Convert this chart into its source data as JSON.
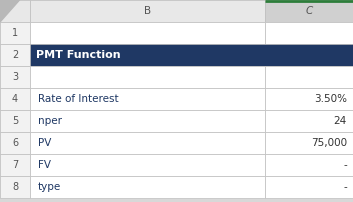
{
  "title": "PMT Function",
  "title_bg": "#1F3864",
  "title_color": "#FFFFFF",
  "rows": [
    {
      "num": "1",
      "col_b": "",
      "col_c": ""
    },
    {
      "num": "2",
      "col_b": "PMT Function",
      "col_c": "",
      "is_title": true
    },
    {
      "num": "3",
      "col_b": "",
      "col_c": ""
    },
    {
      "num": "4",
      "col_b": "Rate of Interest",
      "col_c": "3.50%"
    },
    {
      "num": "5",
      "col_b": "nper",
      "col_c": "24"
    },
    {
      "num": "6",
      "col_b": "PV",
      "col_c": "75,000"
    },
    {
      "num": "7",
      "col_b": "FV",
      "col_c": "-"
    },
    {
      "num": "8",
      "col_b": "type",
      "col_c": "-"
    }
  ],
  "bg_color": "#FFFFFF",
  "outer_bg": "#D8D8D8",
  "grid_color": "#BEBEBE",
  "header_bg": "#E8E8E8",
  "header_text_color": "#555555",
  "row_num_bg": "#F2F2F2",
  "row_num_text": "#555555",
  "body_text_color": "#1F3864",
  "value_text_color": "#333333",
  "col_c_selected_top": "#2D7D3A",
  "col_c_header_bg": "#D0D0D0",
  "corner_triangle_color": "#B8B8B8"
}
